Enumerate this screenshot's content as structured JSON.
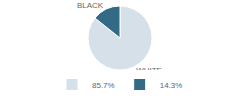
{
  "chart_data": {
    "type": "pie",
    "categories": [
      "WHITE",
      "BLACK"
    ],
    "values": [
      85.7,
      14.3
    ],
    "value_labels": [
      "85.7%",
      "14.3%"
    ],
    "colors": [
      "#d6e0e8",
      "#336b87"
    ],
    "legend": "bottom"
  }
}
